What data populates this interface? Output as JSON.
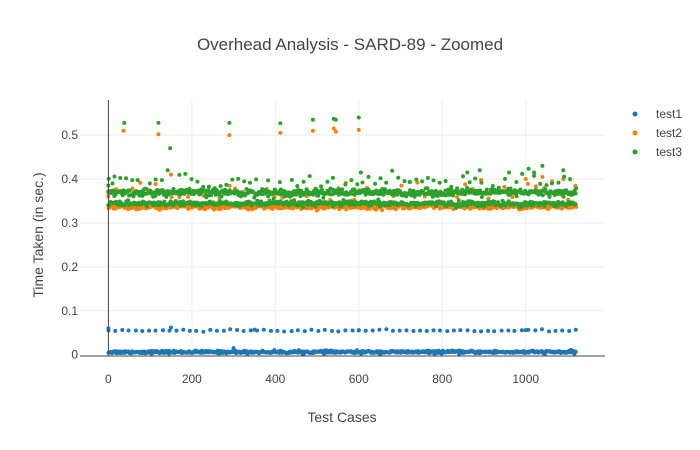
{
  "chart_data": {
    "type": "scatter",
    "title": "Overhead Analysis - SARD-89 - Zoomed",
    "xlabel": "Test Cases",
    "ylabel": "Time Taken (in sec.)",
    "xlim": [
      -68,
      1190
    ],
    "ylim": [
      -0.003,
      0.58
    ],
    "x_ticks": [
      0,
      200,
      400,
      600,
      800,
      1000
    ],
    "y_ticks": [
      0,
      0.1,
      0.2,
      0.3,
      0.4,
      0.5
    ],
    "x_tick_labels": [
      "0",
      "200",
      "400",
      "600",
      "800",
      "1000"
    ],
    "y_tick_labels": [
      "0",
      "0.1",
      "0.2",
      "0.3",
      "0.4",
      "0.5"
    ],
    "grid": true,
    "legend_position": "top-right",
    "series": [
      {
        "name": "test1",
        "color": "#1f77b4",
        "clusters": [
          {
            "x_range": [
              0,
              1120
            ],
            "count": 560,
            "y_center": 0.006,
            "y_jitter": 0.0015
          },
          {
            "x_range": [
              0,
              1120
            ],
            "count": 70,
            "y_center": 0.055,
            "y_jitter": 0.0012
          }
        ],
        "points": [
          [
            0,
            0.06
          ],
          [
            150,
            0.062
          ],
          [
            300,
            0.015
          ],
          [
            350,
            0.057
          ],
          [
            600,
            0.056
          ],
          [
            1000,
            0.056
          ]
        ]
      },
      {
        "name": "test2",
        "color": "#ff7f0e",
        "clusters": [
          {
            "x_range": [
              0,
              1120
            ],
            "count": 560,
            "y_center": 0.337,
            "y_jitter": 0.003
          },
          {
            "x_range": [
              0,
              1120
            ],
            "count": 60,
            "y_center": 0.372,
            "y_jitter": 0.012
          }
        ],
        "points": [
          [
            36,
            0.51
          ],
          [
            120,
            0.502
          ],
          [
            290,
            0.5
          ],
          [
            412,
            0.505
          ],
          [
            490,
            0.51
          ],
          [
            540,
            0.515
          ],
          [
            545,
            0.508
          ],
          [
            600,
            0.512
          ],
          [
            0,
            0.36
          ],
          [
            5,
            0.37
          ],
          [
            150,
            0.41
          ],
          [
            290,
            0.385
          ],
          [
            620,
            0.38
          ],
          [
            1000,
            0.4
          ],
          [
            1040,
            0.405
          ],
          [
            1090,
            0.4
          ]
        ]
      },
      {
        "name": "test3",
        "color": "#2ca02c",
        "clusters": [
          {
            "x_range": [
              0,
              1120
            ],
            "count": 560,
            "y_center": 0.369,
            "y_jitter": 0.004
          },
          {
            "x_range": [
              0,
              1120
            ],
            "count": 500,
            "y_center": 0.344,
            "y_jitter": 0.003
          },
          {
            "x_range": [
              0,
              1120
            ],
            "count": 80,
            "y_center": 0.395,
            "y_jitter": 0.01
          }
        ],
        "points": [
          [
            38,
            0.528
          ],
          [
            120,
            0.528
          ],
          [
            290,
            0.528
          ],
          [
            412,
            0.527
          ],
          [
            490,
            0.535
          ],
          [
            540,
            0.537
          ],
          [
            545,
            0.535
          ],
          [
            600,
            0.54
          ],
          [
            148,
            0.47
          ],
          [
            0,
            0.385
          ],
          [
            10,
            0.39
          ],
          [
            860,
            0.415
          ],
          [
            890,
            0.42
          ],
          [
            960,
            0.415
          ],
          [
            1020,
            0.415
          ],
          [
            1040,
            0.43
          ],
          [
            1090,
            0.42
          ],
          [
            605,
            0.415
          ]
        ]
      }
    ]
  }
}
